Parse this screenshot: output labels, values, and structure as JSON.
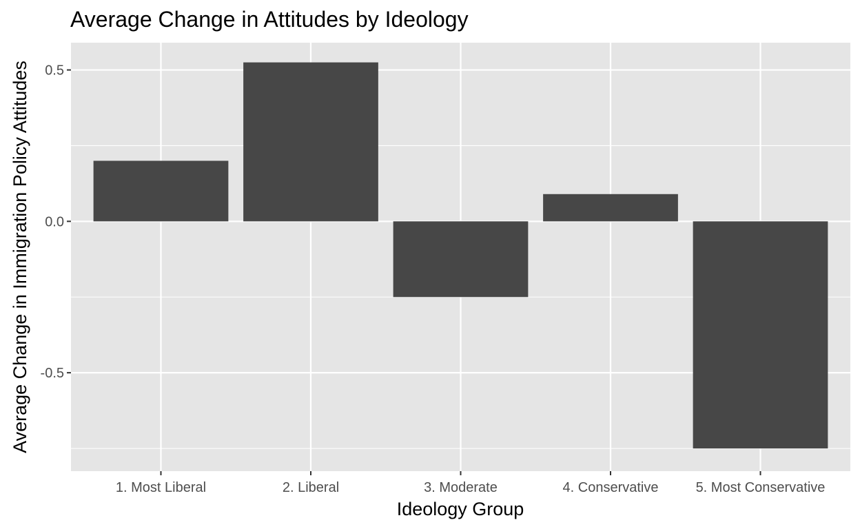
{
  "chart_data": {
    "type": "bar",
    "title": "Average Change in Attitudes by Ideology",
    "xlabel": "Ideology Group",
    "ylabel": "Average Change in Immigration Policy Attitudes",
    "categories": [
      "1. Most Liberal",
      "2. Liberal",
      "3. Moderate",
      "4. Conservative",
      "5. Most Conservative"
    ],
    "values": [
      0.2,
      0.525,
      -0.25,
      0.09,
      -0.75
    ],
    "ylim": [
      -0.825,
      0.59
    ],
    "yticks": [
      -0.5,
      0.0,
      0.5
    ],
    "ytick_labels": [
      "-0.5",
      "0.0",
      "0.5"
    ],
    "grid": true,
    "colors": {
      "panel_background": "#e5e5e5",
      "gridline": "#ffffff",
      "bar_fill": "#474747",
      "tick_text": "#4d4d4d",
      "tick_mark": "#333333"
    }
  }
}
